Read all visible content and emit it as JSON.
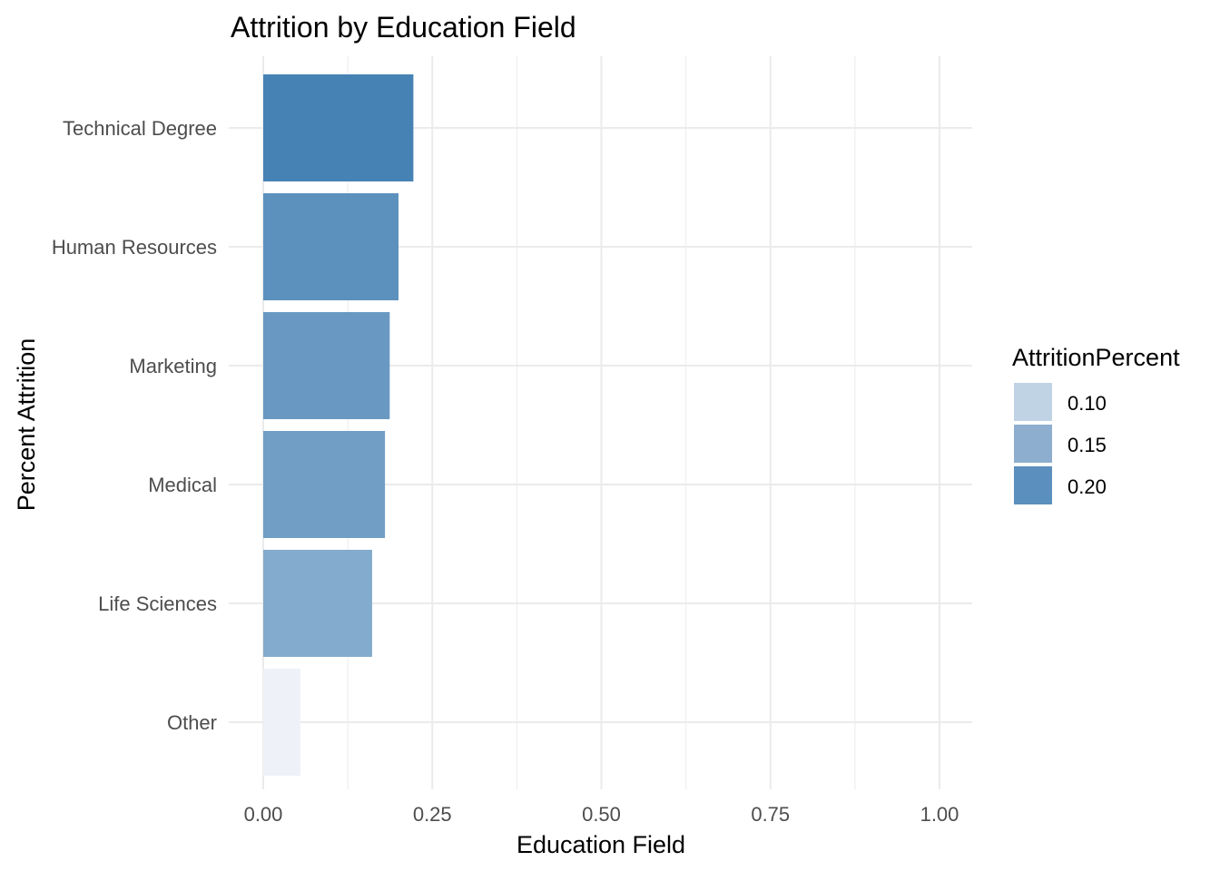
{
  "chart_data": {
    "type": "bar",
    "orientation": "horizontal",
    "title": "Attrition by Education Field",
    "xlabel": "Education Field",
    "ylabel": "Percent Attrition",
    "categories": [
      "Technical Degree",
      "Human Resources",
      "Marketing",
      "Medical",
      "Life Sciences",
      "Other"
    ],
    "values": [
      0.222,
      0.2,
      0.187,
      0.18,
      0.161,
      0.055
    ],
    "xlim": [
      0,
      1.05
    ],
    "xticks": [
      "0.00",
      "0.25",
      "0.50",
      "0.75",
      "1.00"
    ],
    "xtick_values": [
      0,
      0.25,
      0.5,
      0.75,
      1.0
    ],
    "grid": true,
    "legend": {
      "title": "AttritionPercent",
      "position": "right",
      "entries": [
        {
          "label": "0.10",
          "color": "#c0d3e4"
        },
        {
          "label": "0.15",
          "color": "#8daecf"
        },
        {
          "label": "0.20",
          "color": "#5b8fbe"
        }
      ]
    },
    "fill_range": [
      0.055,
      0.222
    ],
    "colors": {
      "low": "#eef2f8",
      "high": "#4682b4",
      "grid": "#ebebeb"
    }
  }
}
